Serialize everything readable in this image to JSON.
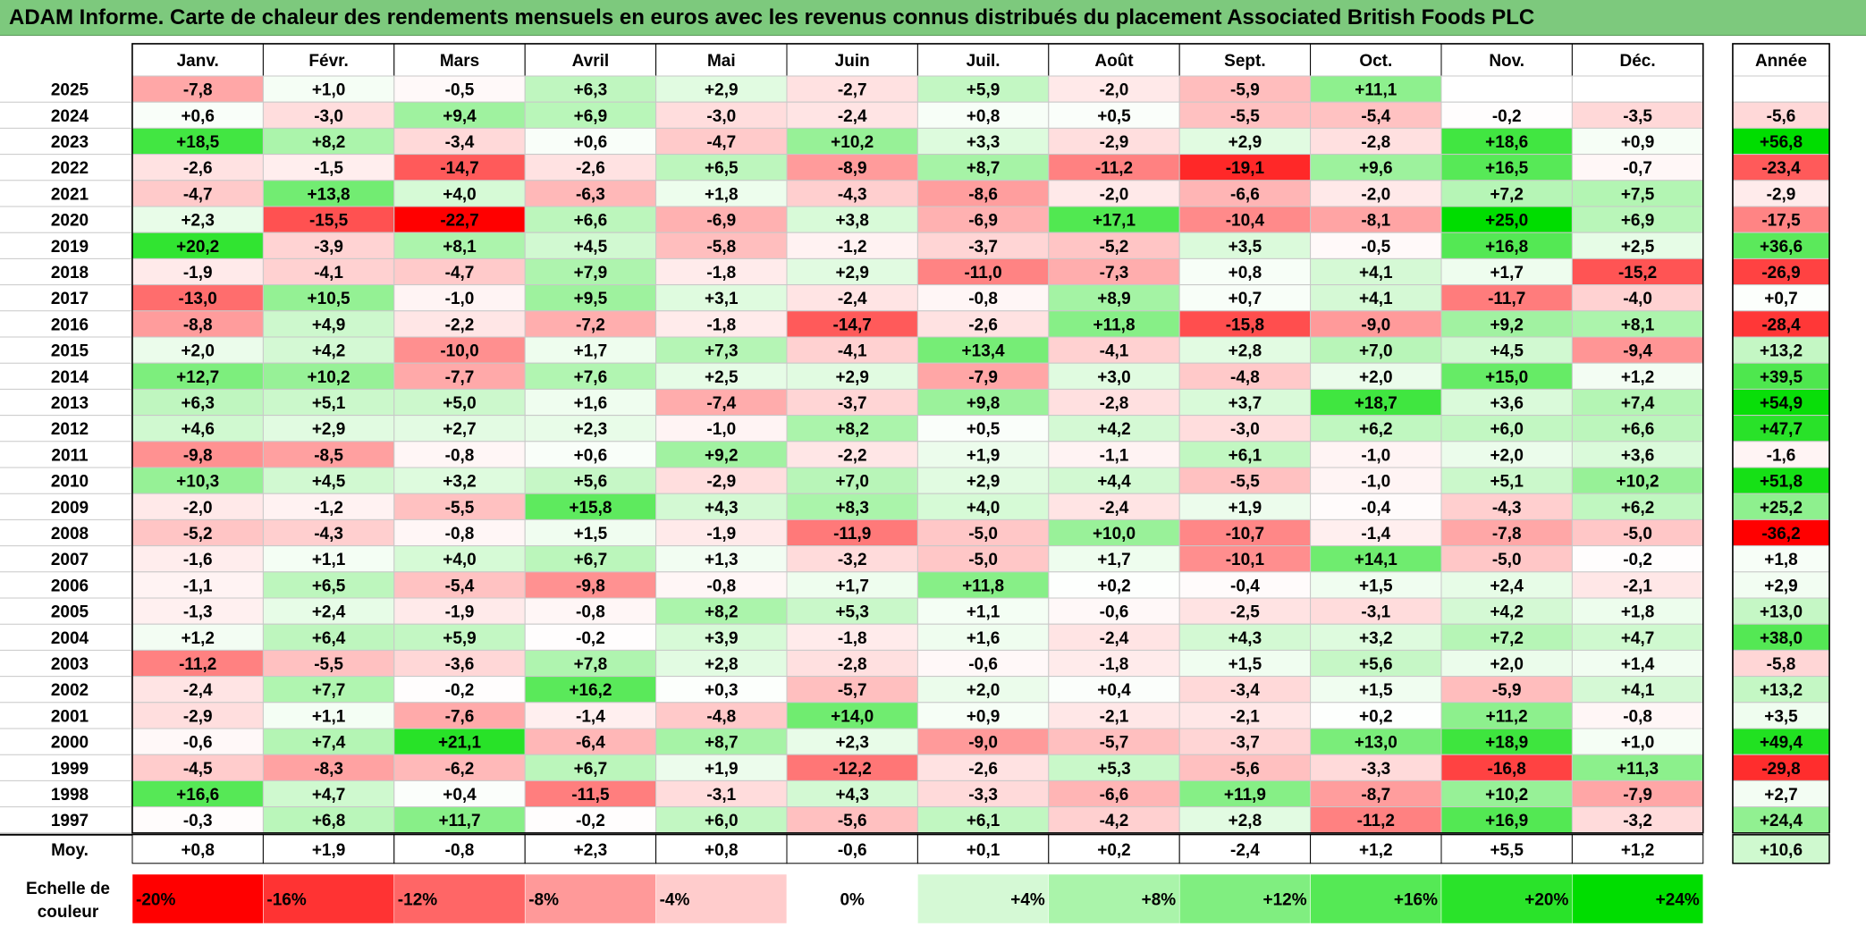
{
  "title": "ADAM Informe. Carte de chaleur des rendements mensuels en euros avec les revenus connus distribués du placement Associated British Foods PLC",
  "chart_data": {
    "type": "heatmap",
    "months": [
      "Janv.",
      "Févr.",
      "Mars",
      "Avril",
      "Mai",
      "Juin",
      "Juil.",
      "Août",
      "Sept.",
      "Oct.",
      "Nov.",
      "Déc."
    ],
    "year_header": "Année",
    "rows": [
      {
        "year": "2025",
        "months": [
          -7.8,
          1.0,
          -0.5,
          6.3,
          2.9,
          -2.7,
          5.9,
          -2.0,
          -5.9,
          11.1,
          null,
          null
        ],
        "annual": null
      },
      {
        "year": "2024",
        "months": [
          0.6,
          -3.0,
          9.4,
          6.9,
          -3.0,
          -2.4,
          0.8,
          0.5,
          -5.5,
          -5.4,
          -0.2,
          -3.5
        ],
        "annual": -5.6
      },
      {
        "year": "2023",
        "months": [
          18.5,
          8.2,
          -3.4,
          0.6,
          -4.7,
          10.2,
          3.3,
          -2.9,
          2.9,
          -2.8,
          18.6,
          0.9
        ],
        "annual": 56.8
      },
      {
        "year": "2022",
        "months": [
          -2.6,
          -1.5,
          -14.7,
          -2.6,
          6.5,
          -8.9,
          8.7,
          -11.2,
          -19.1,
          9.6,
          16.5,
          -0.7
        ],
        "annual": -23.4
      },
      {
        "year": "2021",
        "months": [
          -4.7,
          13.8,
          4.0,
          -6.3,
          1.8,
          -4.3,
          -8.6,
          -2.0,
          -6.6,
          -2.0,
          7.2,
          7.5
        ],
        "annual": -2.9
      },
      {
        "year": "2020",
        "months": [
          2.3,
          -15.5,
          -22.7,
          6.6,
          -6.9,
          3.8,
          -6.9,
          17.1,
          -10.4,
          -8.1,
          25.0,
          6.9
        ],
        "annual": -17.5
      },
      {
        "year": "2019",
        "months": [
          20.2,
          -3.9,
          8.1,
          4.5,
          -5.8,
          -1.2,
          -3.7,
          -5.2,
          3.5,
          -0.5,
          16.8,
          2.5
        ],
        "annual": 36.6
      },
      {
        "year": "2018",
        "months": [
          -1.9,
          -4.1,
          -4.7,
          7.9,
          -1.8,
          2.9,
          -11.0,
          -7.3,
          0.8,
          4.1,
          1.7,
          -15.2
        ],
        "annual": -26.9
      },
      {
        "year": "2017",
        "months": [
          -13.0,
          10.5,
          -1.0,
          9.5,
          3.1,
          -2.4,
          -0.8,
          8.9,
          0.7,
          4.1,
          -11.7,
          -4.0
        ],
        "annual": 0.7
      },
      {
        "year": "2016",
        "months": [
          -8.8,
          4.9,
          -2.2,
          -7.2,
          -1.8,
          -14.7,
          -2.6,
          11.8,
          -15.8,
          -9.0,
          9.2,
          8.1
        ],
        "annual": -28.4
      },
      {
        "year": "2015",
        "months": [
          2.0,
          4.2,
          -10.0,
          1.7,
          7.3,
          -4.1,
          13.4,
          -4.1,
          2.8,
          7.0,
          4.5,
          -9.4
        ],
        "annual": 13.2
      },
      {
        "year": "2014",
        "months": [
          12.7,
          10.2,
          -7.7,
          7.6,
          2.5,
          2.9,
          -7.9,
          3.0,
          -4.8,
          2.0,
          15.0,
          1.2
        ],
        "annual": 39.5
      },
      {
        "year": "2013",
        "months": [
          6.3,
          5.1,
          5.0,
          1.6,
          -7.4,
          -3.7,
          9.8,
          -2.8,
          3.7,
          18.7,
          3.6,
          7.4
        ],
        "annual": 54.9
      },
      {
        "year": "2012",
        "months": [
          4.6,
          2.9,
          2.7,
          2.3,
          -1.0,
          8.2,
          0.5,
          4.2,
          -3.0,
          6.2,
          6.0,
          6.6
        ],
        "annual": 47.7
      },
      {
        "year": "2011",
        "months": [
          -9.8,
          -8.5,
          -0.8,
          0.6,
          9.2,
          -2.2,
          1.9,
          -1.1,
          6.1,
          -1.0,
          2.0,
          3.6
        ],
        "annual": -1.6
      },
      {
        "year": "2010",
        "months": [
          10.3,
          4.5,
          3.2,
          5.6,
          -2.9,
          7.0,
          2.9,
          4.4,
          -5.5,
          -1.0,
          5.1,
          10.2
        ],
        "annual": 51.8
      },
      {
        "year": "2009",
        "months": [
          -2.0,
          -1.2,
          -5.5,
          15.8,
          4.3,
          8.3,
          4.0,
          -2.4,
          1.9,
          -0.4,
          -4.3,
          6.2
        ],
        "annual": 25.2
      },
      {
        "year": "2008",
        "months": [
          -5.2,
          -4.3,
          -0.8,
          1.5,
          -1.9,
          -11.9,
          -5.0,
          10.0,
          -10.7,
          -1.4,
          -7.8,
          -5.0
        ],
        "annual": -36.2
      },
      {
        "year": "2007",
        "months": [
          -1.6,
          1.1,
          4.0,
          6.7,
          1.3,
          -3.2,
          -5.0,
          1.7,
          -10.1,
          14.1,
          -5.0,
          -0.2
        ],
        "annual": 1.8
      },
      {
        "year": "2006",
        "months": [
          -1.1,
          6.5,
          -5.4,
          -9.8,
          -0.8,
          1.7,
          11.8,
          0.2,
          -0.4,
          1.5,
          2.4,
          -2.1
        ],
        "annual": 2.9
      },
      {
        "year": "2005",
        "months": [
          -1.3,
          2.4,
          -1.9,
          -0.8,
          8.2,
          5.3,
          1.1,
          -0.6,
          -2.5,
          -3.1,
          4.2,
          1.8
        ],
        "annual": 13.0
      },
      {
        "year": "2004",
        "months": [
          1.2,
          6.4,
          5.9,
          -0.2,
          3.9,
          -1.8,
          1.6,
          -2.4,
          4.3,
          3.2,
          7.2,
          4.7
        ],
        "annual": 38.0
      },
      {
        "year": "2003",
        "months": [
          -11.2,
          -5.5,
          -3.6,
          7.8,
          2.8,
          -2.8,
          -0.6,
          -1.8,
          1.5,
          5.6,
          2.0,
          1.4
        ],
        "annual": -5.8
      },
      {
        "year": "2002",
        "months": [
          -2.4,
          7.7,
          -0.2,
          16.2,
          0.3,
          -5.7,
          2.0,
          0.4,
          -3.4,
          1.5,
          -5.9,
          4.1
        ],
        "annual": 13.2
      },
      {
        "year": "2001",
        "months": [
          -2.9,
          1.1,
          -7.6,
          -1.4,
          -4.8,
          14.0,
          0.9,
          -2.1,
          -2.1,
          0.2,
          11.2,
          -0.8
        ],
        "annual": 3.5
      },
      {
        "year": "2000",
        "months": [
          -0.6,
          7.4,
          21.1,
          -6.4,
          8.7,
          2.3,
          -9.0,
          -5.7,
          -3.7,
          13.0,
          18.9,
          1.0
        ],
        "annual": 49.4
      },
      {
        "year": "1999",
        "months": [
          -4.5,
          -8.3,
          -6.2,
          6.7,
          1.9,
          -12.2,
          -2.6,
          5.3,
          -5.6,
          -3.3,
          -16.8,
          11.3
        ],
        "annual": -29.8
      },
      {
        "year": "1998",
        "months": [
          16.6,
          4.7,
          0.4,
          -11.5,
          -3.1,
          4.3,
          -3.3,
          -6.6,
          11.9,
          -8.7,
          10.2,
          -7.9
        ],
        "annual": 2.7
      },
      {
        "year": "1997",
        "months": [
          -0.3,
          6.8,
          11.7,
          -0.2,
          6.0,
          -5.6,
          6.1,
          -4.2,
          2.8,
          -11.2,
          16.9,
          -3.2
        ],
        "annual": 24.4
      }
    ],
    "average": {
      "label": "Moy.",
      "months": [
        0.8,
        1.9,
        -0.8,
        2.3,
        0.8,
        -0.6,
        0.1,
        0.2,
        -2.4,
        1.2,
        5.5,
        1.2
      ],
      "annual": 10.6
    },
    "scale": {
      "label_line1": "Echelle de",
      "label_line2": "couleur",
      "steps": [
        {
          "label": "-20%",
          "value": -20,
          "color": "#ff0000"
        },
        {
          "label": "-16%",
          "value": -16,
          "color": "#ff3333"
        },
        {
          "label": "-12%",
          "value": -12,
          "color": "#ff6666"
        },
        {
          "label": "-8%",
          "value": -8,
          "color": "#ff9999"
        },
        {
          "label": "-4%",
          "value": -4,
          "color": "#ffcccc"
        },
        {
          "label": "0%",
          "value": 0,
          "color": "#ffffff"
        },
        {
          "label": "+4%",
          "value": 4,
          "color": "#d5f9d5"
        },
        {
          "label": "+8%",
          "value": 8,
          "color": "#aaf4aa"
        },
        {
          "label": "+12%",
          "value": 12,
          "color": "#80ee80"
        },
        {
          "label": "+16%",
          "value": 16,
          "color": "#55e955"
        },
        {
          "label": "+20%",
          "value": 20,
          "color": "#2ae32a"
        },
        {
          "label": "+24%",
          "value": 24,
          "color": "#00dd00"
        }
      ]
    }
  }
}
